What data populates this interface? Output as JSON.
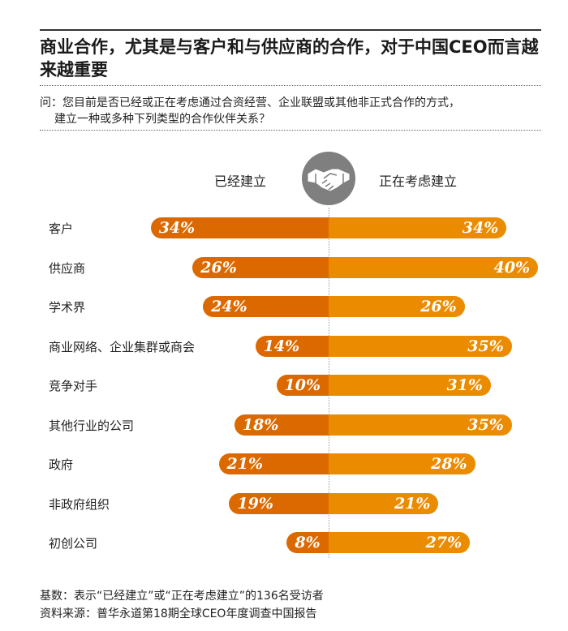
{
  "title": "商业合作，尤其是与客户和与供应商的合作，对于中国CEO而言越来越重要",
  "question_line1": "问：您目前是否已经或正在考虑通过合资经营、企业联盟或其他非正式合作的方式，",
  "question_line2": "建立一种或多种下列类型的合作伙伴关系？",
  "colors": {
    "established": "#dc6900",
    "considering": "#eb8c00",
    "icon": "#7f7f7f"
  },
  "icon": "handshake-icon",
  "chart_data": {
    "type": "bar",
    "orientation": "horizontal-diverging",
    "unit": "%",
    "categories": [
      "客户",
      "供应商",
      "学术界",
      "商业网络、企业集群或商会",
      "竞争对手",
      "其他行业的公司",
      "政府",
      "非政府组织",
      "初创公司"
    ],
    "series": [
      {
        "name": "已经建立",
        "values": [
          34,
          26,
          24,
          14,
          10,
          18,
          21,
          19,
          8
        ],
        "labels": [
          "34%",
          "26%",
          "24%",
          "14%",
          "10%",
          "18%",
          "21%",
          "19%",
          "8%"
        ]
      },
      {
        "name": "正在考虑建立",
        "values": [
          34,
          40,
          26,
          35,
          31,
          35,
          28,
          21,
          27
        ],
        "labels": [
          "34%",
          "40%",
          "26%",
          "35%",
          "31%",
          "35%",
          "28%",
          "21%",
          "27%"
        ]
      }
    ]
  },
  "footer": {
    "base": "基数：表示“已经建立”或“正在考虑建立”的136名受访者",
    "source": "资料来源：普华永道第18期全球CEO年度调查中国报告"
  }
}
